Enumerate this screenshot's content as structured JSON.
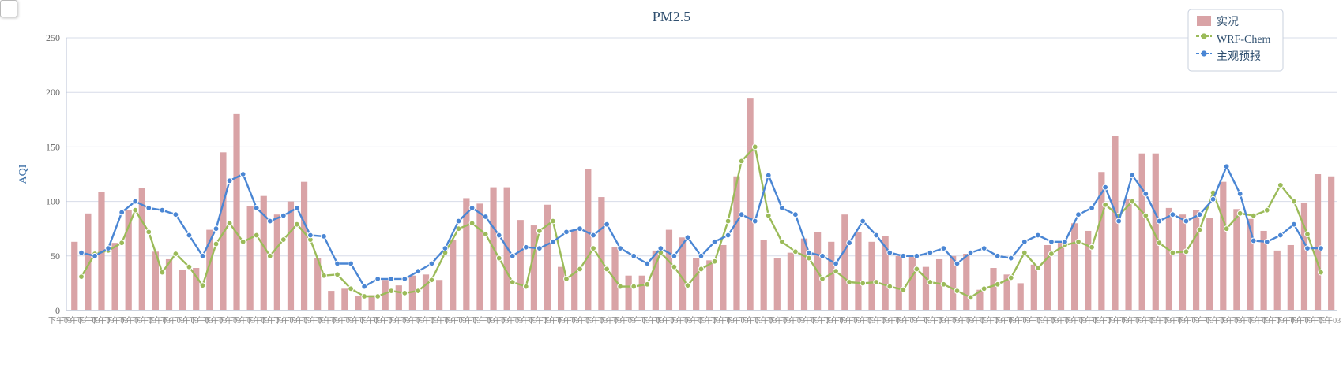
{
  "chart_data": {
    "type": "bar",
    "title": "PM2.5",
    "ylabel": "AQI",
    "xlabel": "",
    "ylim": [
      0,
      250
    ],
    "yticks": [
      0,
      50,
      100,
      150,
      200,
      250
    ],
    "x_tick_text": "下午03",
    "legend_position": "top-right",
    "grid": true,
    "series": [
      {
        "name": "实况",
        "kind": "bar",
        "color": "#d9a3a6",
        "values": [
          63,
          89,
          109,
          62,
          92,
          112,
          54,
          47,
          37,
          39,
          74,
          145,
          180,
          96,
          105,
          88,
          100,
          118,
          48,
          18,
          20,
          13,
          14,
          28,
          23,
          32,
          33,
          28,
          65,
          103,
          98,
          113,
          113,
          83,
          78,
          97,
          40,
          74,
          130,
          104,
          58,
          32,
          32,
          55,
          74,
          67,
          48,
          46,
          60,
          123,
          195,
          65,
          48,
          53,
          66,
          72,
          63,
          88,
          72,
          63,
          68,
          50,
          50,
          40,
          47,
          50,
          52,
          19,
          39,
          33,
          25,
          42,
          60,
          62,
          80,
          73,
          127,
          160,
          102,
          144,
          144,
          94,
          88,
          92,
          85,
          118,
          93,
          84,
          73,
          55,
          60,
          99,
          125,
          123
        ]
      },
      {
        "name": "WRF-Chem",
        "kind": "line",
        "color": "#9bbb59",
        "values": [
          31,
          52,
          55,
          62,
          92,
          72,
          35,
          52,
          40,
          23,
          61,
          80,
          63,
          69,
          50,
          65,
          79,
          65,
          32,
          33,
          20,
          13,
          13,
          18,
          16,
          18,
          28,
          53,
          75,
          80,
          70,
          48,
          26,
          22,
          73,
          82,
          29,
          38,
          57,
          38,
          22,
          22,
          24,
          53,
          40,
          23,
          38,
          45,
          82,
          137,
          150,
          87,
          63,
          54,
          48,
          29,
          36,
          26,
          25,
          26,
          22,
          19,
          38,
          26,
          24,
          18,
          12,
          20,
          24,
          30,
          53,
          39,
          52,
          60,
          63,
          58,
          97,
          87,
          100,
          87,
          62,
          53,
          54,
          74,
          108,
          75,
          89,
          87,
          92,
          115,
          100,
          70,
          35
        ]
      },
      {
        "name": "主观预报",
        "kind": "line",
        "color": "#4a86d4",
        "values": [
          53,
          50,
          57,
          90,
          100,
          94,
          92,
          88,
          69,
          50,
          75,
          119,
          125,
          94,
          82,
          87,
          94,
          69,
          68,
          43,
          43,
          22,
          29,
          29,
          29,
          36,
          43,
          57,
          82,
          94,
          86,
          69,
          50,
          58,
          57,
          63,
          72,
          75,
          69,
          79,
          57,
          50,
          43,
          57,
          50,
          67,
          50,
          63,
          69,
          88,
          82,
          124,
          94,
          88,
          53,
          50,
          43,
          62,
          82,
          69,
          53,
          50,
          50,
          53,
          57,
          43,
          53,
          57,
          50,
          48,
          63,
          69,
          63,
          63,
          88,
          94,
          113,
          82,
          124,
          107,
          82,
          88,
          82,
          88,
          102,
          132,
          107,
          64,
          63,
          69,
          79,
          57,
          57
        ]
      }
    ]
  }
}
